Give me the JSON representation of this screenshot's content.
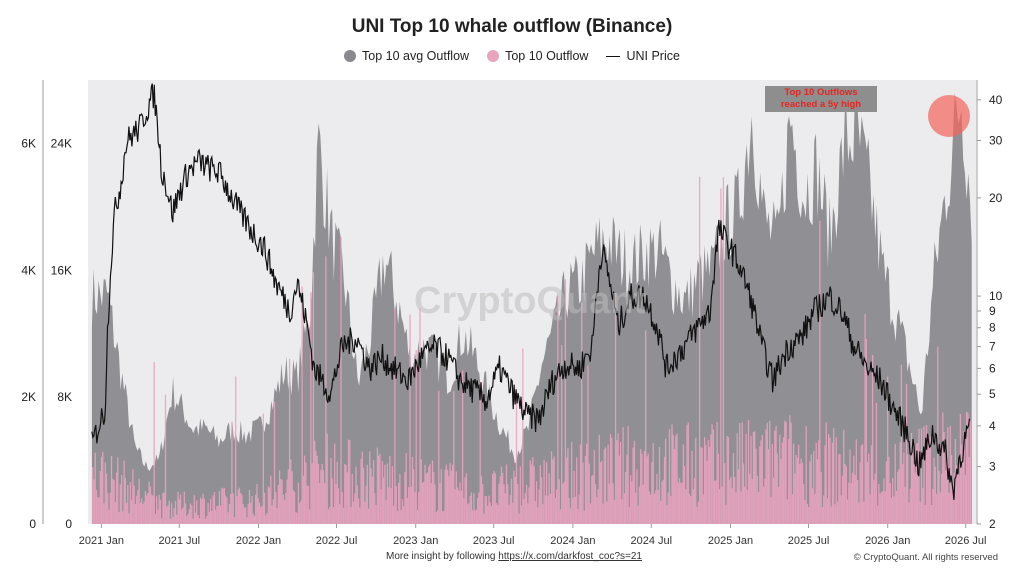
{
  "chart_data": {
    "type": "area",
    "title": "UNI Top 10 whale outflow (Binance)",
    "legend": [
      {
        "label": "Top 10 avg Outflow",
        "color": "#8a8a8e",
        "marker": "dot"
      },
      {
        "label": "Top 10 Outflow",
        "color": "#e9a3bf",
        "marker": "dot"
      },
      {
        "label": "UNI Price",
        "color": "#111111",
        "marker": "line"
      }
    ],
    "x_tick_labels": [
      "2021 Jan",
      "2021 Jul",
      "2022 Jan",
      "2022 Jul",
      "2023 Jan",
      "2023 Jul",
      "2024 Jan",
      "2024 Jul",
      "2025 Jan",
      "2025 Jul",
      "2026 Jan",
      "2026 Jul"
    ],
    "left_axis_outer": {
      "ticks": [
        "0",
        "2K",
        "4K",
        "6K"
      ],
      "range": [
        0,
        7000
      ]
    },
    "left_axis_inner": {
      "ticks": [
        "0",
        "8K",
        "16K",
        "24K"
      ],
      "range": [
        0,
        28000
      ]
    },
    "right_axis": {
      "scale": "log",
      "ticks": [
        "2",
        "3",
        "4",
        "5",
        "6",
        "7",
        "8",
        "9",
        "10",
        "20",
        "30",
        "40"
      ],
      "range": [
        2,
        46
      ]
    },
    "grid": false,
    "legend_position": "top-center",
    "series": [
      {
        "name": "Top 10 avg Outflow",
        "axis": "left_outer",
        "dates": [
          "2020-12-10",
          "2021-01-15",
          "2021-02-15",
          "2021-03-20",
          "2021-04-15",
          "2021-05-15",
          "2021-06-15",
          "2021-07-10",
          "2021-08-01",
          "2021-09-01",
          "2021-10-01",
          "2021-11-01",
          "2021-12-01",
          "2022-01-01",
          "2022-02-01",
          "2022-03-01",
          "2022-04-01",
          "2022-05-01",
          "2022-05-20",
          "2022-06-20",
          "2022-07-20",
          "2022-08-20",
          "2022-09-20",
          "2022-10-20",
          "2022-11-20",
          "2022-12-20",
          "2023-01-20",
          "2023-02-20",
          "2023-03-20",
          "2023-04-20",
          "2023-05-20",
          "2023-06-20",
          "2023-07-20",
          "2023-08-20",
          "2023-09-20",
          "2023-10-20",
          "2023-11-20",
          "2023-12-20",
          "2024-01-20",
          "2024-02-20",
          "2024-03-20",
          "2024-04-20",
          "2024-05-20",
          "2024-06-20",
          "2024-07-20",
          "2024-08-20",
          "2024-09-20",
          "2024-10-20",
          "2024-11-20",
          "2024-12-20",
          "2025-01-20",
          "2025-02-20",
          "2025-03-20",
          "2025-04-20",
          "2025-05-20",
          "2025-06-20",
          "2025-07-20",
          "2025-08-20",
          "2025-09-20",
          "2025-10-20",
          "2025-11-20",
          "2025-12-20",
          "2026-01-20",
          "2026-02-20",
          "2026-03-20",
          "2026-04-20",
          "2026-05-20",
          "2026-06-20",
          "2026-07-15"
        ],
        "values": [
          3600,
          3600,
          2400,
          1200,
          900,
          1000,
          2100,
          1800,
          1500,
          1500,
          1300,
          1500,
          1400,
          1500,
          1900,
          2400,
          2300,
          3400,
          6000,
          4500,
          3800,
          2200,
          3000,
          4200,
          3500,
          2600,
          2800,
          2600,
          2300,
          3000,
          2600,
          2000,
          1500,
          1100,
          1500,
          2500,
          3100,
          3700,
          3800,
          4300,
          4500,
          4200,
          4100,
          4300,
          4300,
          3800,
          3500,
          3900,
          4000,
          4700,
          5000,
          6500,
          4800,
          4400,
          6400,
          5200,
          5600,
          4500,
          5900,
          6200,
          5300,
          4000,
          3300,
          2500,
          1700,
          4000,
          5400,
          6800,
          5000
        ]
      },
      {
        "name": "Top 10 Outflow",
        "axis": "left_inner",
        "dates": [
          "2021-01-01",
          "2021-06-01",
          "2022-01-01",
          "2022-06-01",
          "2023-01-01",
          "2023-06-01",
          "2024-01-01",
          "2024-06-01",
          "2025-01-01",
          "2025-06-01",
          "2026-01-01",
          "2026-06-01"
        ],
        "typical_values": [
          4000,
          1500,
          2000,
          4500,
          3500,
          2500,
          4000,
          5000,
          5000,
          5500,
          4000,
          6000
        ],
        "spike_values": [
          24000,
          8000,
          10000,
          20000,
          14000,
          12000,
          16000,
          14000,
          29000,
          28000,
          10000,
          20000
        ]
      },
      {
        "name": "UNI Price",
        "axis": "right",
        "dates": [
          "2020-12-10",
          "2021-01-10",
          "2021-02-01",
          "2021-02-15",
          "2021-03-01",
          "2021-04-01",
          "2021-05-03",
          "2021-05-20",
          "2021-06-15",
          "2021-07-20",
          "2021-08-15",
          "2021-09-01",
          "2021-10-01",
          "2021-11-01",
          "2021-11-20",
          "2021-12-15",
          "2022-01-15",
          "2022-02-10",
          "2022-03-15",
          "2022-04-01",
          "2022-05-10",
          "2022-06-18",
          "2022-07-15",
          "2022-08-15",
          "2022-09-15",
          "2022-10-15",
          "2022-11-10",
          "2022-12-15",
          "2023-01-15",
          "2023-02-15",
          "2023-03-15",
          "2023-04-15",
          "2023-06-15",
          "2023-07-15",
          "2023-08-15",
          "2023-09-15",
          "2023-10-15",
          "2023-11-15",
          "2023-12-15",
          "2024-01-15",
          "2024-02-15",
          "2024-03-08",
          "2024-04-15",
          "2024-05-15",
          "2024-06-15",
          "2024-07-15",
          "2024-08-05",
          "2024-09-15",
          "2024-10-15",
          "2024-11-15",
          "2024-12-05",
          "2025-01-15",
          "2025-02-15",
          "2025-03-15",
          "2025-04-09",
          "2025-05-15",
          "2025-06-15",
          "2025-07-15",
          "2025-08-20",
          "2025-09-15",
          "2025-10-15",
          "2025-11-15",
          "2025-12-15",
          "2026-01-15",
          "2026-02-15",
          "2026-03-15",
          "2026-04-15",
          "2026-05-15",
          "2026-06-01",
          "2026-06-15",
          "2026-07-10"
        ],
        "values": [
          3.5,
          4.5,
          18,
          22,
          30,
          33,
          42,
          25,
          18,
          24,
          26,
          25,
          24,
          20,
          18,
          16,
          14,
          11,
          9,
          11,
          6,
          5,
          7,
          7.5,
          6,
          6.5,
          6,
          5.5,
          6.5,
          7,
          6.5,
          5.5,
          4.8,
          6,
          5,
          4.3,
          4.2,
          5.5,
          6.2,
          6,
          7,
          14,
          8,
          10,
          10,
          8,
          6,
          7,
          8,
          9,
          16,
          13,
          10,
          7,
          5.5,
          7,
          7.5,
          9,
          10,
          9,
          7,
          6,
          5.5,
          4.5,
          3.8,
          3,
          3.8,
          3.3,
          2.5,
          3.1,
          4
        ]
      }
    ],
    "annotation": "Top 10 Outflows reached a 5y high",
    "watermark": "CryptoQuant"
  },
  "footer": {
    "insight_text": "More insight by following",
    "link_text": "https://x.com/darkfost_coc?s=21",
    "copyright": "© CryptoQuant. All rights reserved"
  }
}
